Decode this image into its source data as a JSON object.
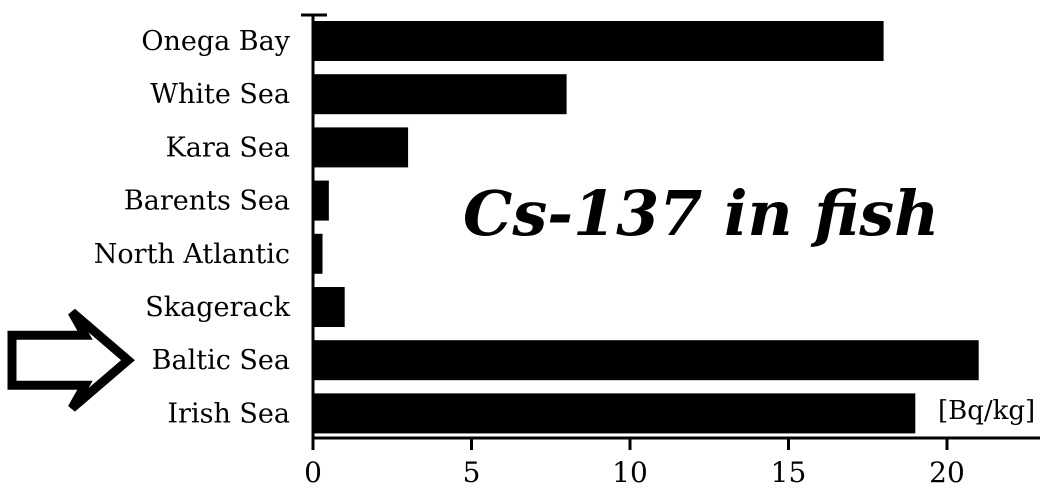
{
  "chart_data": {
    "type": "bar",
    "orientation": "horizontal",
    "title": "Cs-137 in fish",
    "unit": "[Bq/kg]",
    "categories": [
      "Onega Bay",
      "White Sea",
      "Kara Sea",
      "Barents Sea",
      "North Atlantic",
      "Skagerack",
      "Baltic Sea",
      "Irish Sea"
    ],
    "values": [
      18,
      8,
      3,
      0.5,
      0.3,
      1,
      21,
      19
    ],
    "xlim": [
      0,
      22
    ],
    "xticks": [
      "0",
      "5",
      "10",
      "15",
      "20"
    ],
    "xlabel": "",
    "ylabel": "",
    "bar_color": "#000000",
    "grid": false,
    "highlight": {
      "category": "Baltic Sea",
      "marker": "arrow-icon"
    }
  }
}
